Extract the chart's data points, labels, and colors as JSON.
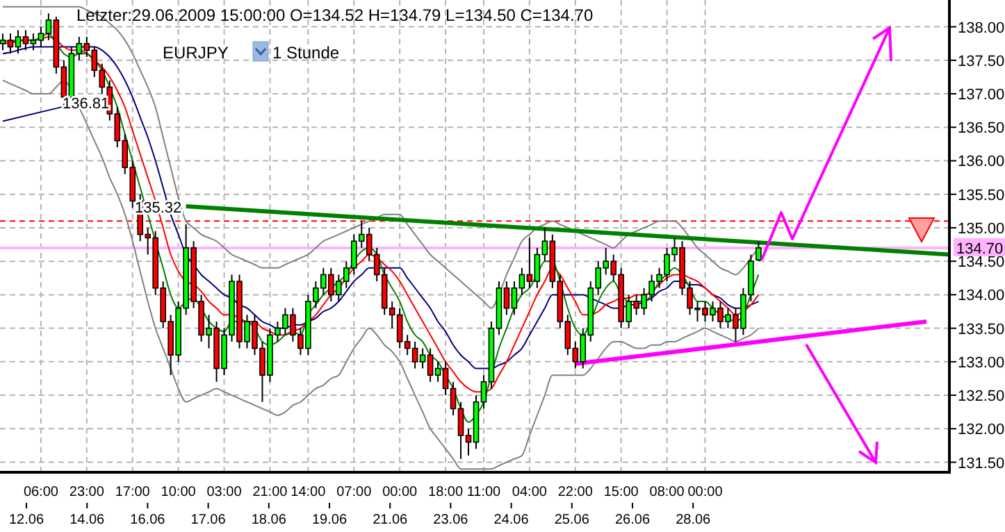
{
  "chart_data": {
    "type": "candlestick",
    "title": "Letzter:29.06.2009 15:00:00 O=134.52 H=134.79 L=134.50 C=134.70",
    "annotations": [
      "EURJPY",
      "1 Stunde",
      "136.81",
      "135.32",
      "12.06",
      "14.06",
      "16.06",
      "17.06",
      "18.06",
      "19.06",
      "21.06",
      "23.06",
      "24.06",
      "25.06",
      "26.06",
      "28.06"
    ],
    "categories": [
      null,
      null,
      null,
      null,
      null,
      "06:00",
      null,
      null,
      null,
      null,
      null,
      "23:00",
      null,
      null,
      null,
      null,
      null,
      "17:00",
      null,
      null,
      null,
      null,
      null,
      "10:00",
      null,
      null,
      null,
      null,
      null,
      "03:00",
      null,
      null,
      null,
      null,
      null,
      "21:00",
      null,
      null,
      null,
      null,
      "14:00",
      null,
      null,
      null,
      null,
      null,
      "07:00",
      null,
      null,
      null,
      null,
      null,
      "00:00",
      null,
      null,
      null,
      null,
      null,
      "18:00",
      null,
      null,
      null,
      null,
      "11:00",
      null,
      null,
      null,
      null,
      null,
      "04:00",
      null,
      null,
      null,
      null,
      null,
      "22:00",
      null,
      null,
      null,
      null,
      null,
      "15:00",
      null,
      null,
      null,
      null,
      null,
      "08:00",
      null,
      null,
      null,
      null,
      "00:00",
      null,
      null,
      null,
      null,
      null,
      null,
      null,
      null,
      null,
      null,
      null,
      null,
      null,
      null,
      null,
      null,
      null,
      null,
      null,
      null,
      null,
      null,
      null,
      null,
      null,
      null,
      null,
      null,
      null,
      null,
      null,
      null
    ],
    "ohlc": [
      [
        137.75,
        137.9,
        137.65,
        137.8
      ],
      [
        137.8,
        137.9,
        137.6,
        137.7
      ],
      [
        137.7,
        137.95,
        137.6,
        137.85
      ],
      [
        137.85,
        137.95,
        137.65,
        137.75
      ],
      [
        137.75,
        137.9,
        137.65,
        137.8
      ],
      [
        137.8,
        138.0,
        137.7,
        137.9
      ],
      [
        137.9,
        138.2,
        137.8,
        138.1
      ],
      [
        138.1,
        138.15,
        137.3,
        137.4
      ],
      [
        137.4,
        137.5,
        136.81,
        136.95
      ],
      [
        136.95,
        137.7,
        136.9,
        137.6
      ],
      [
        137.6,
        137.85,
        137.5,
        137.75
      ],
      [
        137.75,
        137.85,
        137.55,
        137.65
      ],
      [
        137.65,
        137.7,
        137.25,
        137.35
      ],
      [
        137.35,
        137.45,
        137.0,
        137.1
      ],
      [
        137.1,
        137.2,
        136.6,
        136.7
      ],
      [
        136.7,
        136.8,
        136.2,
        136.3
      ],
      [
        136.3,
        136.4,
        135.8,
        135.9
      ],
      [
        135.9,
        136.0,
        135.3,
        135.4
      ],
      [
        135.4,
        135.5,
        134.8,
        134.9
      ],
      [
        134.9,
        135.0,
        134.6,
        134.85
      ],
      [
        134.85,
        134.95,
        134.0,
        134.1
      ],
      [
        134.1,
        134.2,
        133.5,
        133.6
      ],
      [
        133.6,
        133.7,
        132.8,
        133.1
      ],
      [
        133.1,
        133.9,
        133.0,
        133.8
      ],
      [
        133.8,
        135.05,
        133.7,
        134.7
      ],
      [
        134.7,
        134.8,
        133.8,
        133.9
      ],
      [
        133.9,
        134.0,
        133.3,
        133.4
      ],
      [
        133.4,
        133.7,
        133.2,
        133.5
      ],
      [
        133.5,
        133.6,
        132.7,
        132.9
      ],
      [
        132.9,
        133.5,
        132.8,
        133.4
      ],
      [
        133.4,
        134.3,
        133.3,
        134.2
      ],
      [
        134.2,
        134.3,
        133.2,
        133.3
      ],
      [
        133.3,
        133.7,
        133.2,
        133.6
      ],
      [
        133.6,
        133.7,
        133.1,
        133.2
      ],
      [
        133.2,
        133.3,
        132.4,
        132.8
      ],
      [
        132.8,
        133.5,
        132.7,
        133.4
      ],
      [
        133.4,
        133.6,
        133.3,
        133.5
      ],
      [
        133.5,
        133.8,
        133.4,
        133.7
      ],
      [
        133.7,
        133.8,
        133.3,
        133.4
      ],
      [
        133.4,
        133.5,
        133.1,
        133.2
      ],
      [
        133.2,
        134.0,
        133.1,
        133.9
      ],
      [
        133.9,
        134.2,
        133.8,
        134.1
      ],
      [
        134.1,
        134.4,
        134.0,
        134.3
      ],
      [
        134.3,
        134.4,
        133.9,
        134.0
      ],
      [
        134.0,
        134.3,
        133.9,
        134.2
      ],
      [
        134.2,
        134.5,
        134.1,
        134.4
      ],
      [
        134.4,
        134.9,
        134.3,
        134.8
      ],
      [
        134.8,
        135.1,
        134.7,
        134.9
      ],
      [
        134.9,
        135.0,
        134.5,
        134.6
      ],
      [
        134.6,
        134.7,
        134.2,
        134.3
      ],
      [
        134.3,
        134.4,
        133.7,
        133.8
      ],
      [
        133.8,
        133.9,
        133.5,
        133.7
      ],
      [
        133.7,
        133.8,
        133.2,
        133.3
      ],
      [
        133.3,
        133.4,
        133.1,
        133.2
      ],
      [
        133.2,
        133.3,
        132.9,
        133.0
      ],
      [
        133.0,
        133.2,
        132.9,
        133.1
      ],
      [
        133.1,
        133.2,
        132.7,
        132.8
      ],
      [
        132.8,
        133.0,
        132.7,
        132.9
      ],
      [
        132.9,
        133.0,
        132.5,
        132.6
      ],
      [
        132.6,
        132.7,
        132.2,
        132.3
      ],
      [
        132.3,
        132.4,
        131.55,
        131.9
      ],
      [
        131.9,
        132.0,
        131.6,
        131.8
      ],
      [
        131.8,
        132.5,
        131.7,
        132.4
      ],
      [
        132.4,
        132.8,
        132.3,
        132.7
      ],
      [
        132.7,
        133.6,
        132.6,
        133.5
      ],
      [
        133.5,
        134.2,
        133.4,
        134.1
      ],
      [
        134.1,
        134.2,
        133.7,
        133.8
      ],
      [
        133.8,
        134.2,
        133.7,
        134.1
      ],
      [
        134.1,
        134.4,
        134.0,
        134.3
      ],
      [
        134.3,
        134.85,
        134.1,
        134.2
      ],
      [
        134.2,
        134.7,
        134.1,
        134.6
      ],
      [
        134.6,
        135.0,
        134.5,
        134.8
      ],
      [
        134.8,
        134.9,
        134.1,
        134.2
      ],
      [
        134.2,
        134.3,
        133.5,
        133.6
      ],
      [
        133.6,
        133.7,
        133.1,
        133.2
      ],
      [
        133.2,
        133.3,
        132.9,
        133.0
      ],
      [
        133.0,
        133.5,
        132.9,
        133.4
      ],
      [
        133.4,
        134.2,
        133.3,
        134.1
      ],
      [
        134.1,
        134.5,
        134.0,
        134.4
      ],
      [
        134.4,
        134.7,
        134.3,
        134.5
      ],
      [
        134.5,
        134.6,
        134.2,
        134.3
      ],
      [
        134.3,
        134.4,
        133.5,
        133.6
      ],
      [
        133.6,
        134.0,
        133.5,
        133.9
      ],
      [
        133.9,
        134.0,
        133.7,
        133.8
      ],
      [
        133.8,
        134.1,
        133.7,
        134.0
      ],
      [
        134.0,
        134.3,
        133.9,
        134.2
      ],
      [
        134.2,
        134.4,
        134.1,
        134.3
      ],
      [
        134.3,
        134.7,
        134.2,
        134.6
      ],
      [
        134.6,
        134.85,
        134.5,
        134.7
      ],
      [
        134.7,
        134.8,
        134.0,
        134.1
      ],
      [
        134.1,
        134.2,
        133.7,
        133.8
      ],
      [
        133.8,
        133.9,
        133.6,
        133.8
      ],
      [
        133.8,
        133.9,
        133.6,
        133.7
      ],
      [
        133.7,
        133.9,
        133.6,
        133.8
      ],
      [
        133.8,
        133.9,
        133.5,
        133.6
      ],
      [
        133.6,
        133.8,
        133.5,
        133.7
      ],
      [
        133.7,
        133.8,
        133.3,
        133.5
      ],
      [
        133.5,
        134.1,
        133.4,
        134.0
      ],
      [
        134.0,
        134.6,
        133.9,
        134.5
      ],
      [
        134.52,
        134.79,
        134.5,
        134.7
      ],
      null,
      null,
      null,
      null,
      null,
      null,
      null,
      null,
      null,
      null,
      null,
      null,
      null,
      null,
      null,
      null,
      null,
      null,
      null,
      null,
      null,
      null,
      null,
      null,
      null
    ],
    "series": [
      {
        "type": "line",
        "color": "#808080",
        "values": [
          138.3,
          138.3,
          138.3,
          138.3,
          138.3,
          138.3,
          138.3,
          138.3,
          138.3,
          138.3,
          138.3,
          138.25,
          138.2,
          138.15,
          138.05,
          137.95,
          137.8,
          137.6,
          137.35,
          137.1,
          136.8,
          136.35,
          135.9,
          135.45,
          135.1,
          135.0,
          134.9,
          134.85,
          134.8,
          134.7,
          134.6,
          134.55,
          134.5,
          134.45,
          134.4,
          134.4,
          134.4,
          134.45,
          134.5,
          134.55,
          134.6,
          134.7,
          134.8,
          134.85,
          134.9,
          134.95,
          135.0,
          135.05,
          135.1,
          135.15,
          135.2,
          135.2,
          135.2,
          135.05,
          134.9,
          134.75,
          134.6,
          134.5,
          134.4,
          134.3,
          134.2,
          134.1,
          134.0,
          133.9,
          133.8,
          134.0,
          134.3,
          134.55,
          134.8,
          134.9,
          135.0,
          135.05,
          135.1,
          135.05,
          135.0,
          134.95,
          134.9,
          134.85,
          134.8,
          134.75,
          134.7,
          134.8,
          134.9,
          134.95,
          135.0,
          135.05,
          135.1,
          135.1,
          135.1,
          135.0,
          134.85,
          134.7,
          134.6,
          134.5,
          134.4,
          134.35,
          134.3,
          134.4,
          134.55,
          134.7,
          null,
          null,
          null,
          null,
          null,
          null,
          null,
          null,
          null,
          null,
          null,
          null,
          null,
          null,
          null,
          null,
          null,
          null,
          null,
          null,
          null,
          null,
          null,
          null,
          null
        ]
      },
      {
        "type": "line",
        "color": "#808080",
        "values": [
          137.2,
          137.15,
          137.1,
          137.05,
          137.0,
          137.0,
          137.0,
          137.1,
          137.2,
          137.05,
          136.8,
          136.55,
          136.3,
          136.05,
          135.75,
          135.5,
          135.2,
          134.8,
          134.35,
          133.9,
          133.5,
          133.2,
          132.9,
          132.6,
          132.4,
          132.45,
          132.5,
          132.55,
          132.6,
          132.55,
          132.5,
          132.45,
          132.4,
          132.35,
          132.3,
          132.25,
          132.2,
          132.25,
          132.35,
          132.4,
          132.5,
          132.6,
          132.65,
          132.75,
          132.8,
          133.0,
          133.2,
          133.35,
          133.5,
          133.4,
          133.25,
          133.15,
          133.0,
          132.75,
          132.5,
          132.25,
          132.0,
          131.85,
          131.7,
          131.55,
          131.4,
          131.4,
          131.4,
          131.4,
          131.4,
          131.45,
          131.5,
          131.55,
          131.6,
          131.9,
          132.2,
          132.5,
          132.8,
          132.8,
          132.8,
          132.8,
          132.8,
          132.9,
          133.05,
          133.2,
          133.3,
          133.3,
          133.25,
          133.2,
          133.2,
          133.25,
          133.25,
          133.3,
          133.3,
          133.35,
          133.4,
          133.45,
          133.5,
          133.45,
          133.4,
          133.35,
          133.3,
          133.35,
          133.4,
          133.5,
          null,
          null,
          null,
          null,
          null,
          null,
          null,
          null,
          null,
          null,
          null,
          null,
          null,
          null,
          null,
          null,
          null,
          null,
          null,
          null,
          null,
          null,
          null,
          null,
          null
        ]
      },
      {
        "type": "line",
        "color": "#000080",
        "values": [
          137.6,
          137.62,
          137.65,
          137.68,
          137.7,
          137.7,
          137.7,
          137.7,
          137.7,
          137.7,
          137.7,
          137.7,
          137.7,
          137.65,
          137.55,
          137.4,
          137.2,
          136.95,
          136.65,
          136.35,
          136.0,
          135.6,
          135.2,
          134.9,
          134.6,
          134.45,
          134.3,
          134.2,
          134.1,
          134.0,
          133.95,
          133.85,
          133.8,
          133.7,
          133.6,
          133.55,
          133.5,
          133.5,
          133.55,
          133.55,
          133.6,
          133.65,
          133.75,
          133.8,
          133.9,
          134.05,
          134.2,
          134.3,
          134.4,
          134.4,
          134.4,
          134.4,
          134.4,
          134.25,
          134.1,
          133.95,
          133.8,
          133.6,
          133.45,
          133.25,
          133.1,
          133.0,
          132.9,
          132.9,
          132.9,
          132.95,
          133.0,
          133.1,
          133.2,
          133.4,
          133.6,
          133.8,
          134.0,
          134.0,
          134.0,
          134.0,
          134.0,
          133.95,
          133.9,
          133.85,
          133.8,
          133.8,
          133.85,
          133.85,
          133.9,
          133.95,
          134.05,
          134.1,
          134.2,
          134.2,
          134.15,
          134.15,
          134.1,
          134.0,
          133.95,
          133.85,
          133.8,
          133.8,
          133.85,
          133.9,
          null,
          null,
          null,
          null,
          null,
          null,
          null,
          null,
          null,
          null,
          null,
          null,
          null,
          null,
          null,
          null,
          null,
          null,
          null,
          null,
          null,
          null,
          null,
          null,
          null
        ]
      },
      {
        "type": "line",
        "color": "#ff0000",
        "values": [
          137.75,
          137.76,
          137.78,
          137.8,
          137.8,
          137.82,
          137.85,
          137.8,
          137.7,
          137.65,
          137.65,
          137.6,
          137.5,
          137.4,
          137.25,
          137.05,
          136.8,
          136.45,
          136.1,
          135.75,
          135.4,
          135.0,
          134.6,
          134.35,
          134.2,
          134.15,
          134.05,
          133.9,
          133.8,
          133.7,
          133.7,
          133.65,
          133.6,
          133.6,
          133.5,
          133.45,
          133.4,
          133.4,
          133.45,
          133.5,
          133.6,
          133.7,
          133.85,
          134.0,
          134.1,
          134.25,
          134.4,
          134.5,
          134.6,
          134.55,
          134.45,
          134.35,
          134.2,
          134.0,
          133.8,
          133.6,
          133.4,
          133.2,
          133.0,
          132.85,
          132.7,
          132.6,
          132.55,
          132.55,
          132.6,
          132.8,
          133.0,
          133.25,
          133.5,
          133.75,
          134.0,
          134.2,
          134.4,
          134.3,
          134.1,
          133.9,
          133.7,
          133.7,
          133.75,
          133.85,
          133.9,
          133.95,
          133.95,
          134.0,
          134.0,
          134.05,
          134.15,
          134.25,
          134.3,
          134.3,
          134.25,
          134.2,
          134.1,
          134.0,
          133.9,
          133.8,
          133.7,
          133.75,
          133.85,
          134.0,
          null,
          null,
          null,
          null,
          null,
          null,
          null,
          null,
          null,
          null,
          null,
          null,
          null,
          null,
          null,
          null,
          null,
          null,
          null,
          null,
          null,
          null,
          null,
          null,
          null
        ]
      },
      {
        "type": "line",
        "color": "#008000",
        "values": [
          137.8,
          137.78,
          137.8,
          137.8,
          137.8,
          137.85,
          137.9,
          137.75,
          137.6,
          137.55,
          137.6,
          137.6,
          137.5,
          137.35,
          137.1,
          136.8,
          136.4,
          136.0,
          135.6,
          135.2,
          134.8,
          134.4,
          134.0,
          133.8,
          133.9,
          133.95,
          133.8,
          133.6,
          133.5,
          133.45,
          133.6,
          133.6,
          133.6,
          133.5,
          133.3,
          133.25,
          133.3,
          133.4,
          133.45,
          133.4,
          133.7,
          133.85,
          134.0,
          134.1,
          134.2,
          134.3,
          134.5,
          134.65,
          134.7,
          134.6,
          134.3,
          134.1,
          133.9,
          133.6,
          133.4,
          133.3,
          133.1,
          133.0,
          132.8,
          132.6,
          132.3,
          132.1,
          132.2,
          132.4,
          132.8,
          133.2,
          133.5,
          133.8,
          134.0,
          134.1,
          134.3,
          134.5,
          134.5,
          134.2,
          133.8,
          133.5,
          133.4,
          133.6,
          133.9,
          134.1,
          134.2,
          134.0,
          133.9,
          133.9,
          133.9,
          134.0,
          134.2,
          134.3,
          134.4,
          134.3,
          134.1,
          133.9,
          133.9,
          133.8,
          133.7,
          133.65,
          133.6,
          133.7,
          134.0,
          134.3,
          null,
          null,
          null,
          null,
          null,
          null,
          null,
          null,
          null,
          null,
          null,
          null,
          null,
          null,
          null,
          null,
          null,
          null,
          null,
          null,
          null,
          null,
          null,
          null,
          null
        ]
      },
      {
        "type": "line",
        "color": "#000080",
        "values": [
          136.59,
          null,
          null,
          null,
          null,
          null,
          null,
          null,
          136.81,
          null,
          null,
          null,
          null,
          null,
          null,
          null,
          null,
          null,
          null,
          null,
          null,
          null,
          null,
          null,
          null,
          null,
          null,
          null,
          null,
          null,
          null,
          null,
          null,
          null,
          null,
          null,
          null,
          null,
          null,
          null,
          null,
          null,
          null,
          null,
          null,
          null,
          null,
          null,
          null,
          null,
          null,
          null,
          null,
          null,
          null,
          null,
          null,
          null,
          null,
          null,
          null,
          null,
          null,
          null,
          null,
          null,
          null,
          null,
          null,
          null,
          null,
          null,
          null,
          null,
          null,
          null,
          null,
          null,
          null,
          null,
          null,
          null,
          null,
          null,
          null,
          null,
          null,
          null,
          null,
          null,
          null,
          null,
          null,
          null,
          null,
          null,
          null,
          null,
          null,
          null,
          null,
          null,
          null,
          null,
          null,
          null,
          null,
          null,
          null,
          null,
          null,
          null,
          null,
          null,
          null,
          null,
          null,
          null,
          null,
          null,
          null,
          null,
          null,
          null,
          null
        ]
      },
      {
        "type": "line",
        "color": "#008000",
        "values": [
          null,
          null,
          null,
          null,
          null,
          null,
          null,
          null,
          null,
          null,
          null,
          null,
          null,
          null,
          null,
          null,
          null,
          null,
          null,
          null,
          null,
          null,
          null,
          null,
          135.32,
          null,
          null,
          null,
          null,
          null,
          null,
          null,
          null,
          null,
          null,
          null,
          null,
          null,
          null,
          null,
          null,
          null,
          null,
          null,
          null,
          null,
          null,
          null,
          null,
          null,
          null,
          null,
          null,
          null,
          null,
          null,
          null,
          null,
          null,
          null,
          null,
          null,
          null,
          null,
          null,
          null,
          null,
          null,
          null,
          null,
          null,
          null,
          null,
          null,
          null,
          null,
          null,
          null,
          null,
          null,
          null,
          null,
          null,
          null,
          null,
          null,
          null,
          null,
          null,
          null,
          null,
          null,
          null,
          null,
          null,
          null,
          null,
          null,
          null,
          null,
          null,
          null,
          null,
          null,
          null,
          null,
          null,
          null,
          null,
          null,
          null,
          null,
          null,
          null,
          null,
          null,
          null,
          null,
          null,
          null,
          null,
          null,
          null,
          null,
          134.6
        ]
      },
      {
        "type": "line",
        "color": "#ff00ff",
        "values": [
          null,
          null,
          null,
          null,
          null,
          null,
          null,
          null,
          null,
          null,
          null,
          null,
          null,
          null,
          null,
          null,
          null,
          null,
          null,
          null,
          null,
          null,
          null,
          null,
          null,
          null,
          null,
          null,
          null,
          null,
          null,
          null,
          null,
          null,
          null,
          null,
          null,
          null,
          null,
          null,
          null,
          null,
          null,
          null,
          null,
          null,
          null,
          null,
          null,
          null,
          null,
          null,
          null,
          null,
          null,
          null,
          null,
          null,
          null,
          null,
          null,
          null,
          null,
          null,
          null,
          null,
          null,
          null,
          null,
          null,
          null,
          null,
          null,
          null,
          null,
          132.97,
          null,
          null,
          null,
          null,
          null,
          null,
          null,
          null,
          null,
          null,
          null,
          null,
          null,
          null,
          null,
          null,
          null,
          null,
          null,
          null,
          null,
          null,
          null,
          null,
          null,
          null,
          null,
          null,
          null,
          null,
          null,
          null,
          null,
          null,
          null,
          null,
          null,
          null,
          null,
          null,
          null,
          null,
          null,
          null,
          null,
          133.6,
          null,
          null,
          null
        ]
      }
    ],
    "ref_lines": [
      {
        "axis": "y",
        "value": 135.1,
        "color": "#ff0000",
        "line_style": "dashed"
      },
      {
        "axis": "y",
        "value": 134.7,
        "label": "134.70",
        "color": "#ffb3ff"
      }
    ],
    "ylim": [
      131.35,
      138.4
    ],
    "yticks": [
      {
        "value": 131.5,
        "label": "131.50"
      },
      {
        "value": 132,
        "label": "132.00"
      },
      {
        "value": 132.5,
        "label": "132.50"
      },
      {
        "value": 133,
        "label": "133.00"
      },
      {
        "value": 133.5,
        "label": "133.50"
      },
      {
        "value": 134,
        "label": "134.00"
      },
      {
        "value": 134.5,
        "label": "134.50"
      },
      {
        "value": 135,
        "label": "135.00"
      },
      {
        "value": 135.5,
        "label": "135.50"
      },
      {
        "value": 136,
        "label": "136.00"
      },
      {
        "value": 136.5,
        "label": "136.50"
      },
      {
        "value": 137,
        "label": "137.00"
      },
      {
        "value": 137.5,
        "label": "137.50"
      },
      {
        "value": 138,
        "label": "138.00"
      }
    ],
    "grid": true
  }
}
